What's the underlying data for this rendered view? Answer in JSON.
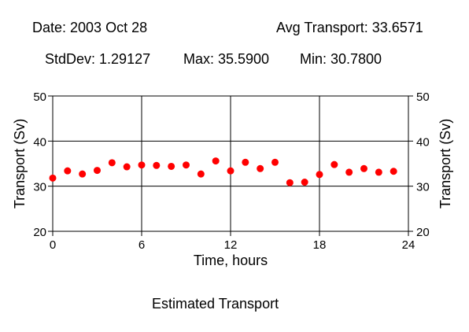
{
  "header": {
    "date": "Date: 2003 Oct 28",
    "avg": "Avg Transport: 33.6571",
    "stddev": "StdDev: 1.29127",
    "max": "Max: 35.5900",
    "min": "Min: 30.7800"
  },
  "footer": {
    "caption": "Estimated Transport"
  },
  "chart_data": {
    "type": "scatter",
    "xlabel": "Time, hours",
    "ylabel": "Transport (Sv)",
    "xlim": [
      0,
      24
    ],
    "ylim": [
      20,
      50
    ],
    "xticks": [
      "0",
      "6",
      "12",
      "18",
      "24"
    ],
    "yticks": [
      "20",
      "30",
      "40",
      "50"
    ],
    "grid": true,
    "marker_color": "#ff0000",
    "series": [
      {
        "x": [
          0,
          1,
          2,
          3,
          4,
          5,
          6,
          7,
          8,
          9,
          10,
          11,
          12,
          13,
          14,
          15,
          16,
          17,
          18,
          19,
          20,
          21,
          22,
          23
        ],
        "values": [
          31.8,
          33.4,
          32.7,
          33.5,
          35.2,
          34.3,
          34.7,
          34.6,
          34.4,
          34.7,
          32.7,
          35.59,
          33.4,
          35.3,
          33.9,
          35.3,
          30.78,
          30.9,
          32.6,
          34.8,
          33.1,
          33.9,
          33.1,
          33.3
        ]
      }
    ]
  }
}
